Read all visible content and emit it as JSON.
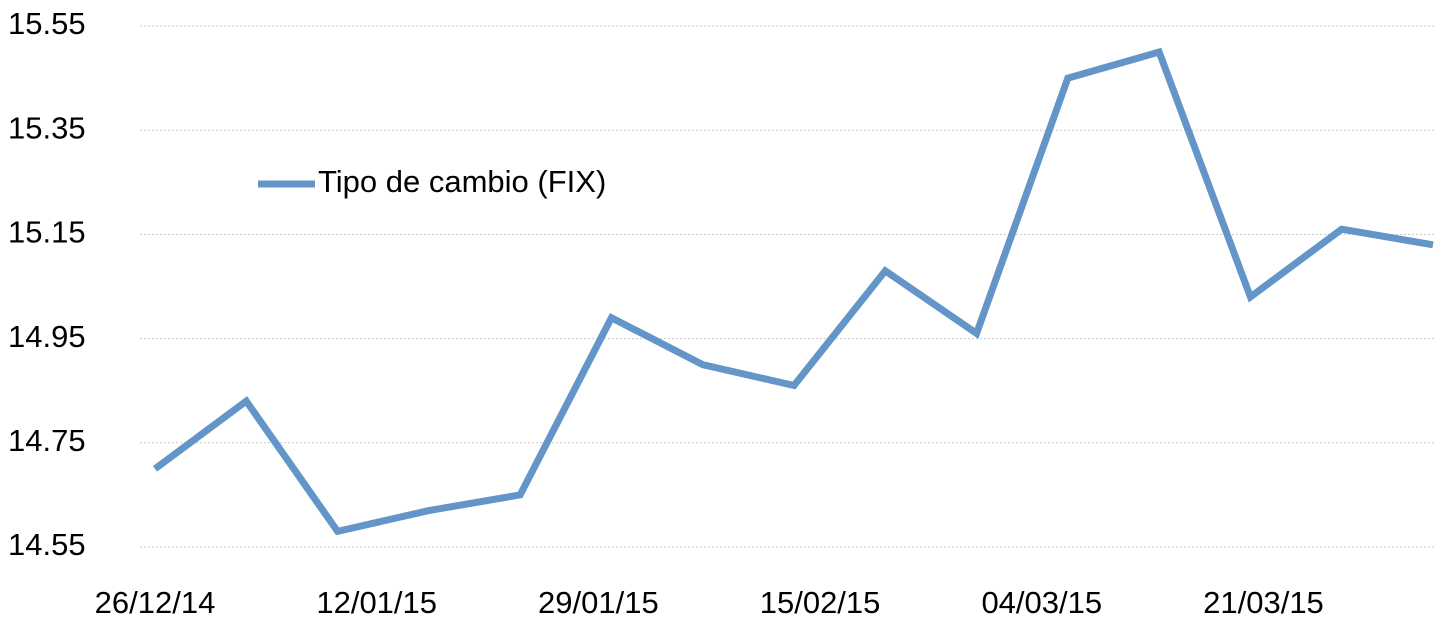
{
  "chart_data": {
    "type": "line",
    "x": [
      "26/12/14",
      "02/01/15",
      "09/01/15",
      "16/01/15",
      "23/01/15",
      "30/01/15",
      "06/02/15",
      "13/02/15",
      "20/02/15",
      "27/02/15",
      "06/03/15",
      "13/03/15",
      "20/03/15",
      "27/03/15",
      "03/04/15"
    ],
    "series": [
      {
        "name": "Tipo de cambio (FIX)",
        "color": "#6495c9",
        "values": [
          14.7,
          14.83,
          14.58,
          14.62,
          14.65,
          14.99,
          14.9,
          14.86,
          15.08,
          14.96,
          15.45,
          15.5,
          15.03,
          15.16,
          15.13
        ]
      }
    ],
    "xlim": [
      "26/12/14",
      "03/04/15"
    ],
    "xticks": [
      "26/12/14",
      "12/01/15",
      "29/01/15",
      "15/02/15",
      "04/03/15",
      "21/03/15"
    ],
    "ylim": [
      14.55,
      15.55
    ],
    "yticks": [
      14.55,
      14.75,
      14.95,
      15.15,
      15.35,
      15.55
    ],
    "grid": true,
    "legend": "upper left"
  }
}
